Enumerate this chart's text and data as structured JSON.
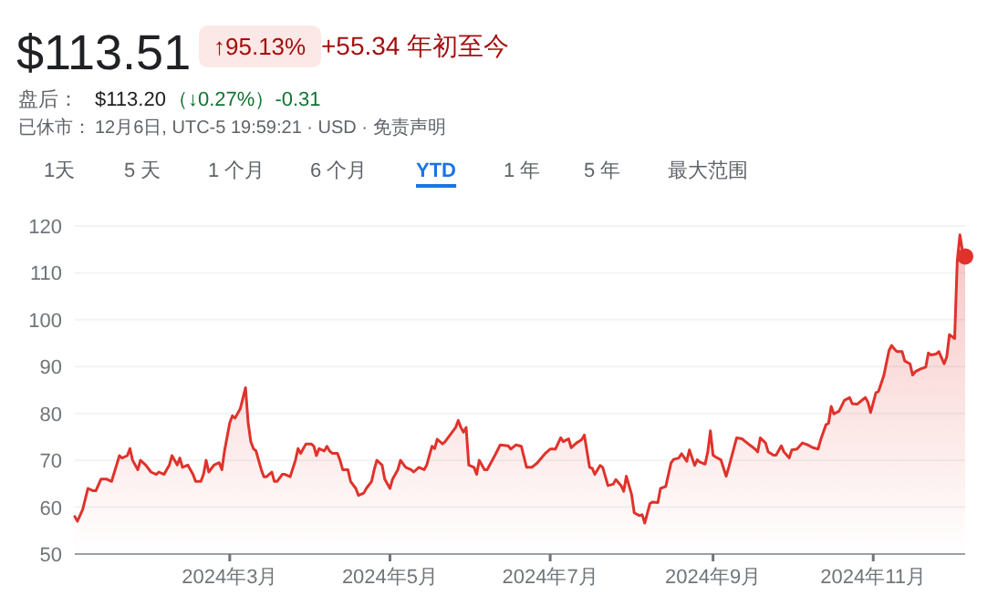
{
  "chart_data": {
    "type": "area",
    "title": "$113.51",
    "annotations": [
      "↑95.13%",
      "+55.34 年初至今",
      "盘后：",
      "$113.20",
      "（↓0.27%）-0.31",
      "已休市：",
      "12月6日, UTC-5 19:59:21 · USD · 免责声明",
      "1天",
      "5 天",
      "1 个月",
      "6 个月",
      "YTD",
      "1 年",
      "5 年",
      "最大范围"
    ],
    "xlim": [
      "2024-01-02",
      "2024-12-06"
    ],
    "xticks": [
      {
        "value": "2024-03-01",
        "label": "2024年3月"
      },
      {
        "value": "2024-05-01",
        "label": "2024年5月"
      },
      {
        "value": "2024-07-01",
        "label": "2024年7月"
      },
      {
        "value": "2024-09-01",
        "label": "2024年9月"
      },
      {
        "value": "2024-11-01",
        "label": "2024年11月"
      }
    ],
    "ylim": [
      50,
      120
    ],
    "yticks": [
      50,
      60,
      70,
      80,
      90,
      100,
      110,
      120
    ],
    "grid": "y",
    "series": [
      {
        "color": "#e0322b",
        "x": [
          "2024-01-02",
          "2024-01-03",
          "2024-01-05",
          "2024-01-07",
          "2024-01-09",
          "2024-01-10",
          "2024-01-12",
          "2024-01-14",
          "2024-01-16",
          "2024-01-19",
          "2024-01-20",
          "2024-01-22",
          "2024-01-23",
          "2024-01-24",
          "2024-01-26",
          "2024-01-27",
          "2024-01-29",
          "2024-01-31",
          "2024-02-02",
          "2024-02-03",
          "2024-02-05",
          "2024-02-07",
          "2024-02-08",
          "2024-02-10",
          "2024-02-11",
          "2024-02-12",
          "2024-02-14",
          "2024-02-16",
          "2024-02-17",
          "2024-02-19",
          "2024-02-20",
          "2024-02-21",
          "2024-02-22",
          "2024-02-24",
          "2024-02-26",
          "2024-02-27",
          "2024-02-28",
          "2024-03-01",
          "2024-03-02",
          "2024-03-03",
          "2024-03-05",
          "2024-03-07",
          "2024-03-08",
          "2024-03-09",
          "2024-03-10",
          "2024-03-11",
          "2024-03-13",
          "2024-03-14",
          "2024-03-15",
          "2024-03-17",
          "2024-03-18",
          "2024-03-19",
          "2024-03-21",
          "2024-03-22",
          "2024-03-24",
          "2024-03-26",
          "2024-03-27",
          "2024-03-28",
          "2024-03-30",
          "2024-04-01",
          "2024-04-02",
          "2024-04-03",
          "2024-04-04",
          "2024-04-06",
          "2024-04-07",
          "2024-04-08",
          "2024-04-09",
          "2024-04-11",
          "2024-04-12",
          "2024-04-13",
          "2024-04-15",
          "2024-04-16",
          "2024-04-18",
          "2024-04-19",
          "2024-04-21",
          "2024-04-22",
          "2024-04-24",
          "2024-04-25",
          "2024-04-26",
          "2024-04-28",
          "2024-04-29",
          "2024-05-01",
          "2024-05-02",
          "2024-05-04",
          "2024-05-05",
          "2024-05-07",
          "2024-05-09",
          "2024-05-10",
          "2024-05-12",
          "2024-05-14",
          "2024-05-15",
          "2024-05-17",
          "2024-05-18",
          "2024-05-19",
          "2024-05-21",
          "2024-05-22",
          "2024-05-24",
          "2024-05-26",
          "2024-05-27",
          "2024-05-28",
          "2024-05-29",
          "2024-05-30",
          "2024-05-31",
          "2024-06-02",
          "2024-06-03",
          "2024-06-04",
          "2024-06-06",
          "2024-06-07",
          "2024-06-10",
          "2024-06-12",
          "2024-06-15",
          "2024-06-16",
          "2024-06-18",
          "2024-06-20",
          "2024-06-22",
          "2024-06-24",
          "2024-06-26",
          "2024-06-29",
          "2024-07-01",
          "2024-07-03",
          "2024-07-05",
          "2024-07-06",
          "2024-07-08",
          "2024-07-09",
          "2024-07-11",
          "2024-07-13",
          "2024-07-14",
          "2024-07-16",
          "2024-07-17",
          "2024-07-18",
          "2024-07-20",
          "2024-07-21",
          "2024-07-23",
          "2024-07-25",
          "2024-07-26",
          "2024-07-28",
          "2024-07-29",
          "2024-07-30",
          "2024-08-01",
          "2024-08-02",
          "2024-08-04",
          "2024-08-05",
          "2024-08-06",
          "2024-08-08",
          "2024-08-09",
          "2024-08-11",
          "2024-08-12",
          "2024-08-14",
          "2024-08-16",
          "2024-08-17",
          "2024-08-19",
          "2024-08-20",
          "2024-08-22",
          "2024-08-23",
          "2024-08-25",
          "2024-08-26",
          "2024-08-27",
          "2024-08-29",
          "2024-08-30",
          "2024-08-31",
          "2024-09-01",
          "2024-09-02",
          "2024-09-04",
          "2024-09-06",
          "2024-09-07",
          "2024-09-10",
          "2024-09-12",
          "2024-09-14",
          "2024-09-17",
          "2024-09-18",
          "2024-09-19",
          "2024-09-21",
          "2024-09-22",
          "2024-09-24",
          "2024-09-25",
          "2024-09-27",
          "2024-09-28",
          "2024-09-30",
          "2024-10-01",
          "2024-10-03",
          "2024-10-05",
          "2024-10-07",
          "2024-10-09",
          "2024-10-11",
          "2024-10-12",
          "2024-10-14",
          "2024-10-15",
          "2024-10-16",
          "2024-10-17",
          "2024-10-19",
          "2024-10-21",
          "2024-10-23",
          "2024-10-24",
          "2024-10-26",
          "2024-10-27",
          "2024-10-29",
          "2024-10-30",
          "2024-10-31",
          "2024-11-02",
          "2024-11-03",
          "2024-11-05",
          "2024-11-07",
          "2024-11-08",
          "2024-11-09",
          "2024-11-10",
          "2024-11-12",
          "2024-11-13",
          "2024-11-15",
          "2024-11-16",
          "2024-11-17",
          "2024-11-19",
          "2024-11-21",
          "2024-11-22",
          "2024-11-23",
          "2024-11-25",
          "2024-11-26",
          "2024-11-28",
          "2024-11-29",
          "2024-11-30",
          "2024-12-02",
          "2024-12-03",
          "2024-12-04",
          "2024-12-05",
          "2024-12-06"
        ],
        "values": [
          58,
          57,
          59.5,
          64,
          63.5,
          63.5,
          66,
          66,
          65.5,
          71,
          70.5,
          71,
          72.5,
          70,
          68,
          70,
          69,
          67.5,
          67,
          67.5,
          67,
          69,
          71,
          69,
          70.5,
          68.5,
          69,
          67,
          65.5,
          65.5,
          67,
          70,
          67.5,
          69,
          69.5,
          68,
          72,
          78,
          79.5,
          79,
          81,
          85.5,
          78,
          74,
          72.5,
          72,
          68,
          66.5,
          66.5,
          67.5,
          65.5,
          65.5,
          67,
          67,
          66.5,
          70,
          72.5,
          71.5,
          73.5,
          73.5,
          73,
          71,
          72.5,
          72,
          73,
          72,
          71.5,
          71.5,
          70,
          68,
          68,
          65.5,
          64,
          62.5,
          63,
          64,
          65.5,
          68,
          70,
          69,
          66,
          64,
          66,
          68,
          70,
          68.5,
          68,
          67.5,
          68.5,
          68,
          69,
          73,
          72.5,
          74.5,
          73.5,
          74,
          75.5,
          77,
          78.5,
          77,
          76,
          77,
          69,
          68.5,
          67,
          70,
          68,
          68,
          71.1,
          73.3,
          73.1,
          72.4,
          73.3,
          73,
          68.5,
          68.5,
          69.4,
          71.4,
          72.4,
          72.4,
          74.8,
          74,
          74.6,
          72.7,
          73.7,
          74.4,
          75.4,
          68.5,
          68.3,
          67,
          68.9,
          68.5,
          64.6,
          64.9,
          65.9,
          64.6,
          63.4,
          66.6,
          62.7,
          58.8,
          58.2,
          58.4,
          56.6,
          60.8,
          61.1,
          61,
          64,
          64.4,
          69.4,
          70.2,
          70.5,
          71.4,
          69.8,
          72.2,
          68.9,
          70.1,
          69.6,
          69.2,
          71.8,
          76.3,
          71.1,
          70.7,
          70.1,
          66.6,
          68.5,
          74.8,
          74.6,
          73.7,
          72.4,
          71.8,
          74.8,
          73.7,
          71.8,
          71.1,
          71.1,
          73.1,
          71.8,
          70.5,
          72.2,
          72.4,
          73.7,
          73.3,
          72.7,
          72.4,
          74.4,
          77.6,
          77.9,
          81.5,
          79.9,
          80.5,
          82.8,
          83.4,
          82.1,
          82,
          82.5,
          83.4,
          82.4,
          80.2,
          84.4,
          84.7,
          88,
          93.4,
          94.5,
          93.8,
          93.2,
          93.2,
          91.2,
          90.6,
          88.2,
          88.9,
          89.5,
          89.9,
          92.9,
          92.5,
          92.7,
          93.2,
          90.6,
          92.1,
          96.8,
          96,
          112.6,
          118.1,
          114.6,
          113.5
        ]
      },
      {
        "type": "scatter",
        "marker": "circle",
        "color": "#e0322b",
        "x": [
          "2024-12-06"
        ],
        "values": [
          113.5
        ]
      }
    ]
  }
}
